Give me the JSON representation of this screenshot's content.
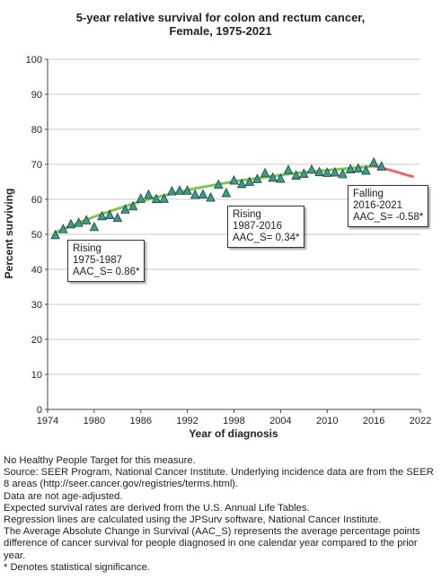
{
  "title_line1": "5-year relative survival for colon and rectum cancer,",
  "title_line2": "Female,  1975-2021",
  "chart_data": {
    "type": "scatter",
    "xlabel": "Year of diagnosis",
    "ylabel": "Percent surviving",
    "xlim": [
      1974,
      2022
    ],
    "ylim": [
      0,
      100
    ],
    "xticks": [
      1974,
      1980,
      1986,
      1992,
      1998,
      2004,
      2010,
      2016,
      2022
    ],
    "yticks": [
      0,
      10,
      20,
      30,
      40,
      50,
      60,
      70,
      80,
      90,
      100
    ],
    "grid": true,
    "observed": {
      "x": [
        1975,
        1976,
        1977,
        1978,
        1979,
        1980,
        1981,
        1982,
        1983,
        1984,
        1985,
        1986,
        1987,
        1988,
        1989,
        1990,
        1991,
        1992,
        1993,
        1994,
        1995,
        1996,
        1997,
        1998,
        1999,
        2000,
        2001,
        2002,
        2003,
        2004,
        2005,
        2006,
        2007,
        2008,
        2009,
        2010,
        2011,
        2012,
        2013,
        2014,
        2015,
        2016,
        2017
      ],
      "y": [
        49.8,
        51.5,
        52.9,
        53.3,
        54.0,
        52.1,
        55.2,
        55.5,
        54.7,
        57.1,
        58.0,
        60.2,
        61.3,
        60.1,
        60.2,
        62.3,
        62.5,
        62.5,
        61.3,
        61.4,
        60.5,
        64.2,
        61.8,
        65.4,
        64.4,
        65.0,
        65.8,
        67.5,
        66.2,
        65.9,
        68.4,
        66.8,
        67.3,
        68.5,
        67.8,
        67.6,
        67.7,
        67.2,
        68.6,
        68.8,
        68.2,
        70.5,
        69.4
      ]
    },
    "trend_segments": [
      {
        "color": "#7ec653",
        "x": [
          1975,
          1976,
          1977,
          1978,
          1979,
          1980,
          1981,
          1982,
          1983,
          1984,
          1985,
          1986,
          1987,
          1988,
          1989,
          1990,
          1991,
          1992,
          1993,
          1994,
          1995,
          1996,
          1997,
          1998,
          1999,
          2000,
          2001,
          2002,
          2003,
          2004,
          2005,
          2006,
          2007,
          2008,
          2009,
          2010,
          2011,
          2012,
          2013,
          2014,
          2015,
          2016
        ],
        "y": [
          50.5,
          51.5,
          52.4,
          53.3,
          54.2,
          55.0,
          55.8,
          56.6,
          57.3,
          58.0,
          58.7,
          59.4,
          60.0,
          60.6,
          61.1,
          61.6,
          62.1,
          62.6,
          63.1,
          63.5,
          63.9,
          64.3,
          64.7,
          65.1,
          65.4,
          65.7,
          66.0,
          66.3,
          66.6,
          66.9,
          67.2,
          67.5,
          67.7,
          67.9,
          68.1,
          68.3,
          68.5,
          68.7,
          68.9,
          69.1,
          69.3,
          69.5
        ]
      },
      {
        "color": "#e86a6a",
        "x": [
          2016,
          2017,
          2018,
          2019,
          2020,
          2021
        ],
        "y": [
          69.5,
          69.0,
          68.4,
          67.8,
          67.1,
          66.5
        ]
      }
    ],
    "segment_labels": [
      {
        "dir": "Rising",
        "years": "1975-1987",
        "aac": "AAC_S=  0.86*"
      },
      {
        "dir": "Rising",
        "years": "1987-2016",
        "aac": "AAC_S=  0.34*"
      },
      {
        "dir": "Falling",
        "years": "2016-2021",
        "aac": "AAC_S= -0.58*"
      }
    ],
    "marker_color": "#3d9a8e",
    "marker_stroke": "#1f3f3a"
  },
  "notes": [
    "No Healthy People Target for this measure.",
    "Source: SEER Program, National Cancer Institute. Underlying incidence data are from the SEER 8 areas (http://seer.cancer.gov/registries/terms.html).",
    "Data are not age-adjusted.",
    "Expected survival rates are derived from the U.S. Annual Life Tables.",
    "Regression lines are calculated using the JPSurv software, National Cancer Institute.",
    "The Average Absolute Change in Survival (AAC_S) represents the average percentage points difference of cancer survival for people diagnosed in one calendar year compared to the prior year.",
    "* Denotes statistical significance."
  ]
}
